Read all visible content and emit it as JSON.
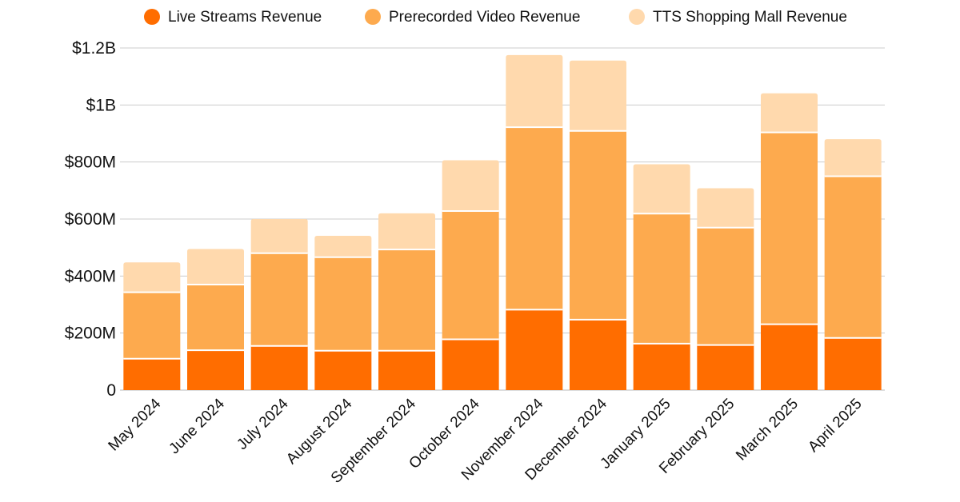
{
  "chart_data": {
    "type": "bar",
    "stacked": true,
    "title": "",
    "xlabel": "",
    "ylabel": "",
    "ylim": [
      0,
      1200000000
    ],
    "grid": true,
    "legend_position": "top",
    "categories": [
      "May 2024",
      "June 2024",
      "July 2024",
      "August 2024",
      "September 2024",
      "October 2024",
      "November 2024",
      "December 2024",
      "January 2025",
      "February 2025",
      "March 2025",
      "April 2025"
    ],
    "series": [
      {
        "name": "Live Streams Revenue",
        "color": "#ff6d00",
        "values": [
          110000000,
          140000000,
          155000000,
          138000000,
          138000000,
          178000000,
          282000000,
          247000000,
          163000000,
          158000000,
          231000000,
          183000000
        ]
      },
      {
        "name": "Prerecorded Video Revenue",
        "color": "#fdaa4e",
        "values": [
          233000000,
          230000000,
          325000000,
          328000000,
          355000000,
          450000000,
          640000000,
          662000000,
          456000000,
          412000000,
          673000000,
          567000000
        ]
      },
      {
        "name": "TTS Shopping Mall Revenue",
        "color": "#ffd9ad",
        "values": [
          105000000,
          125000000,
          120000000,
          75000000,
          127000000,
          178000000,
          253000000,
          247000000,
          173000000,
          138000000,
          137000000,
          130000000
        ]
      }
    ],
    "y_ticks": [
      {
        "value": 0,
        "label": "0"
      },
      {
        "value": 200000000,
        "label": "$200M"
      },
      {
        "value": 400000000,
        "label": "$400M"
      },
      {
        "value": 600000000,
        "label": "$600M"
      },
      {
        "value": 800000000,
        "label": "$800M"
      },
      {
        "value": 1000000000,
        "label": "$1B"
      },
      {
        "value": 1200000000,
        "label": "$1.2B"
      }
    ]
  }
}
